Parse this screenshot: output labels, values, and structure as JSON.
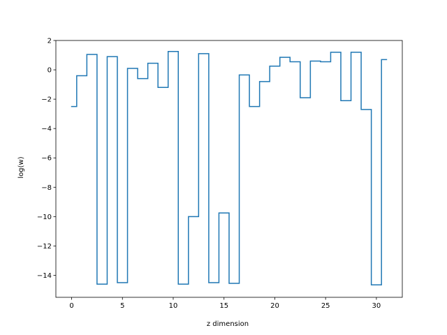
{
  "chart_data": {
    "type": "line",
    "drawstyle": "steps-mid",
    "title": "",
    "xlabel": "z dimension",
    "ylabel": "log(w)",
    "xlim": [
      -1.55,
      32.55
    ],
    "ylim": [
      -15.5,
      2.0
    ],
    "xticks": [
      0,
      5,
      10,
      15,
      20,
      25,
      30
    ],
    "yticks": [
      2,
      0,
      -2,
      -4,
      -6,
      -8,
      -10,
      -12,
      -14
    ],
    "xtick_labels": [
      "0",
      "5",
      "10",
      "15",
      "20",
      "25",
      "30"
    ],
    "ytick_labels": [
      "2",
      "0",
      "−2",
      "−4",
      "−6",
      "−8",
      "−10",
      "−12",
      "−14"
    ],
    "grid": false,
    "legend": "none",
    "series": [
      {
        "color": "#1f77b4",
        "x": [
          0,
          1,
          2,
          3,
          4,
          5,
          6,
          7,
          8,
          9,
          10,
          11,
          12,
          13,
          14,
          15,
          16,
          17,
          18,
          19,
          20,
          21,
          22,
          23,
          24,
          25,
          26,
          27,
          28,
          29,
          30,
          31
        ],
        "y": [
          -2.5,
          -0.4,
          1.05,
          -14.6,
          0.9,
          -14.5,
          0.1,
          -0.6,
          0.45,
          -1.2,
          1.25,
          -14.6,
          -10.0,
          1.1,
          -14.5,
          -9.75,
          -14.55,
          -0.35,
          -2.5,
          -0.8,
          0.25,
          0.85,
          0.55,
          -1.9,
          0.6,
          0.55,
          1.2,
          -2.1,
          1.2,
          -2.7,
          -14.65,
          0.7
        ]
      }
    ]
  }
}
